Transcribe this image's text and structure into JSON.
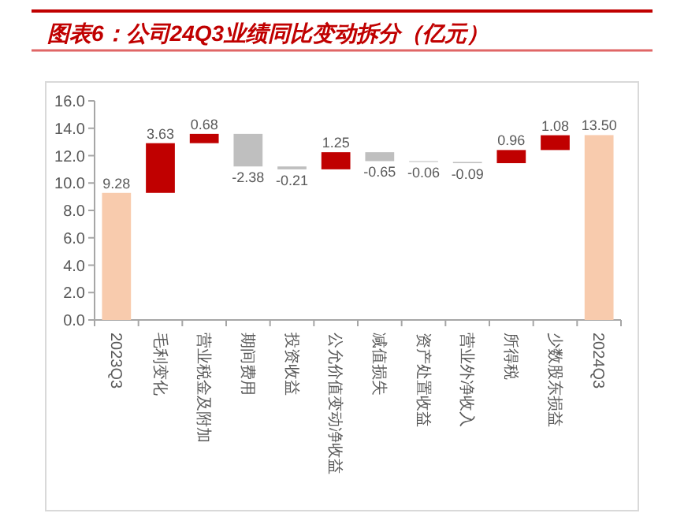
{
  "chart_data": {
    "type": "bar",
    "title": "图表6：公司24Q3业绩同比变动拆分（亿元）",
    "categories": [
      "2023Q3",
      "毛利变化",
      "营业税金及附加",
      "期间费用",
      "投资收益",
      "公允价值变动净收益",
      "减值损失",
      "资产处置收益",
      "营业外净收入",
      "所得税",
      "少数股东损益",
      "2024Q3"
    ],
    "values": [
      9.28,
      3.63,
      0.68,
      -2.38,
      -0.21,
      1.25,
      -0.65,
      -0.06,
      -0.09,
      0.96,
      1.08,
      13.5
    ],
    "base": [
      0,
      9.28,
      12.91,
      13.59,
      11.21,
      11.0,
      12.25,
      11.6,
      11.54,
      11.45,
      12.41,
      0
    ],
    "colors": [
      "#f8cbad",
      "#c00000",
      "#c00000",
      "#bfbfbf",
      "#bfbfbf",
      "#c00000",
      "#bfbfbf",
      "#bfbfbf",
      "#bfbfbf",
      "#c00000",
      "#c00000",
      "#f8cbad"
    ],
    "value_labels": [
      "9.28",
      "3.63",
      "0.68",
      "-2.38",
      "-0.21",
      "1.25",
      "-0.65",
      "-0.06",
      "-0.09",
      "0.96",
      "1.08",
      "13.50"
    ],
    "ylim": [
      0,
      16
    ],
    "yticks": [
      {
        "value": 0,
        "label": "0.0"
      },
      {
        "value": 2,
        "label": "2.0"
      },
      {
        "value": 4,
        "label": "4.0"
      },
      {
        "value": 6,
        "label": "6.0"
      },
      {
        "value": 8,
        "label": "8.0"
      },
      {
        "value": 10,
        "label": "10.0"
      },
      {
        "value": 12,
        "label": "12.0"
      },
      {
        "value": 14,
        "label": "14.0"
      },
      {
        "value": 16,
        "label": "16.0"
      }
    ],
    "grid": false
  }
}
